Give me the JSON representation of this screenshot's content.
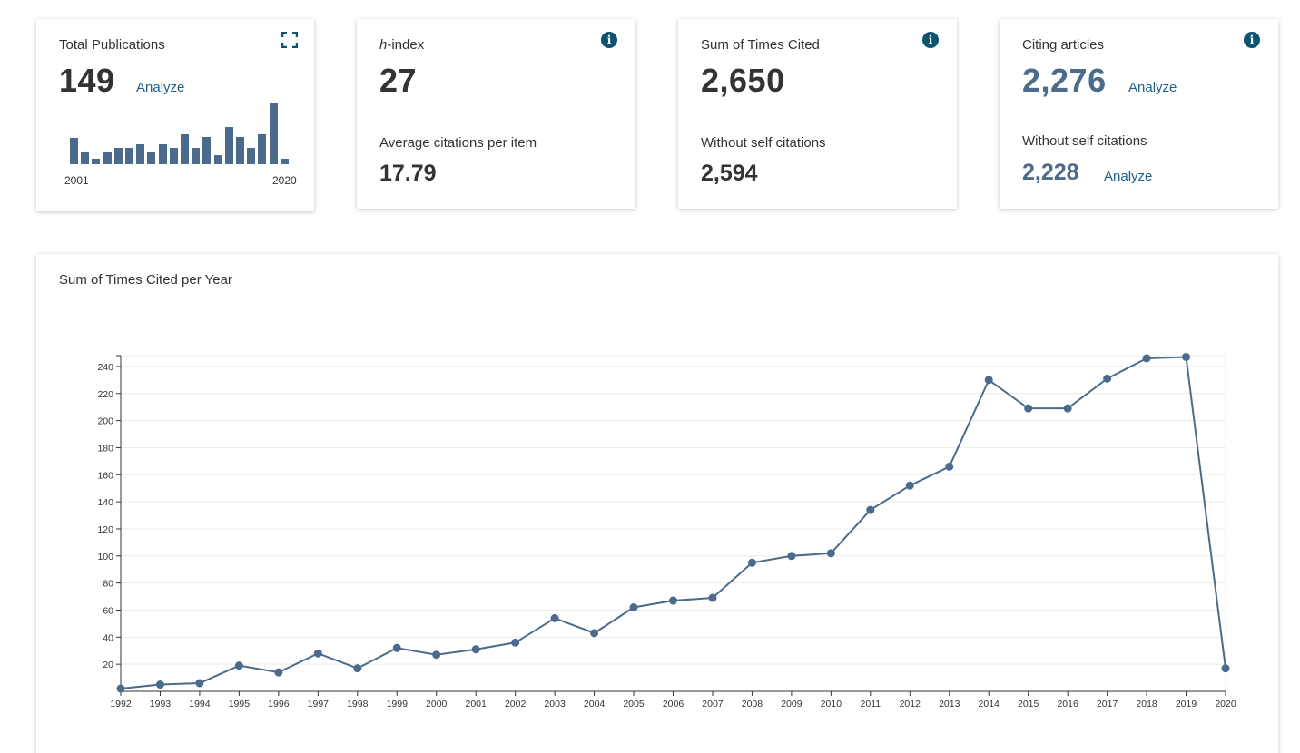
{
  "cards": {
    "total_publications": {
      "title": "Total Publications",
      "value": "149",
      "analyze_label": "Analyze",
      "start_year": "2001",
      "end_year": "2020",
      "icon": "expand-icon",
      "mini_bar_relative_heights": [
        0.42,
        0.2,
        0.09,
        0.2,
        0.27,
        0.27,
        0.33,
        0.21,
        0.33,
        0.27,
        0.49,
        0.27,
        0.44,
        0.15,
        0.6,
        0.44,
        0.27,
        0.49,
        1.0,
        0.09
      ]
    },
    "h_index": {
      "title_italic": "h",
      "title_rest": "-index",
      "value": "27",
      "sub_title": "Average citations per item",
      "sub_value": "17.79",
      "icon": "info-icon"
    },
    "times_cited": {
      "title": "Sum of Times Cited",
      "value": "2,650",
      "sub_title": "Without self citations",
      "sub_value": "2,594",
      "icon": "info-icon"
    },
    "citing_articles": {
      "title": "Citing articles",
      "value": "2,276",
      "analyze_label": "Analyze",
      "sub_title": "Without self citations",
      "sub_value": "2,228",
      "sub_analyze_label": "Analyze",
      "icon": "info-icon"
    }
  },
  "chart_section": {
    "title": "Sum of Times Cited per Year"
  },
  "chart_data": {
    "type": "line",
    "title": "Sum of Times Cited per Year",
    "xlabel": "",
    "ylabel": "",
    "x": [
      "1992",
      "1993",
      "1994",
      "1995",
      "1996",
      "1997",
      "1998",
      "1999",
      "2000",
      "2001",
      "2002",
      "2003",
      "2004",
      "2005",
      "2006",
      "2007",
      "2008",
      "2009",
      "2010",
      "2011",
      "2012",
      "2013",
      "2014",
      "2015",
      "2016",
      "2017",
      "2018",
      "2019",
      "2020"
    ],
    "series": [
      {
        "values": [
          2,
          5,
          6,
          19,
          14,
          28,
          17,
          32,
          27,
          31,
          36,
          54,
          43,
          62,
          67,
          69,
          95,
          100,
          102,
          134,
          152,
          166,
          230,
          209,
          209,
          231,
          246,
          247,
          17
        ]
      }
    ],
    "yticks": [
      20,
      40,
      60,
      80,
      100,
      120,
      140,
      160,
      180,
      200,
      220,
      240
    ],
    "ylim": [
      0,
      248
    ],
    "grid": true,
    "color": "#4a6b8c"
  }
}
